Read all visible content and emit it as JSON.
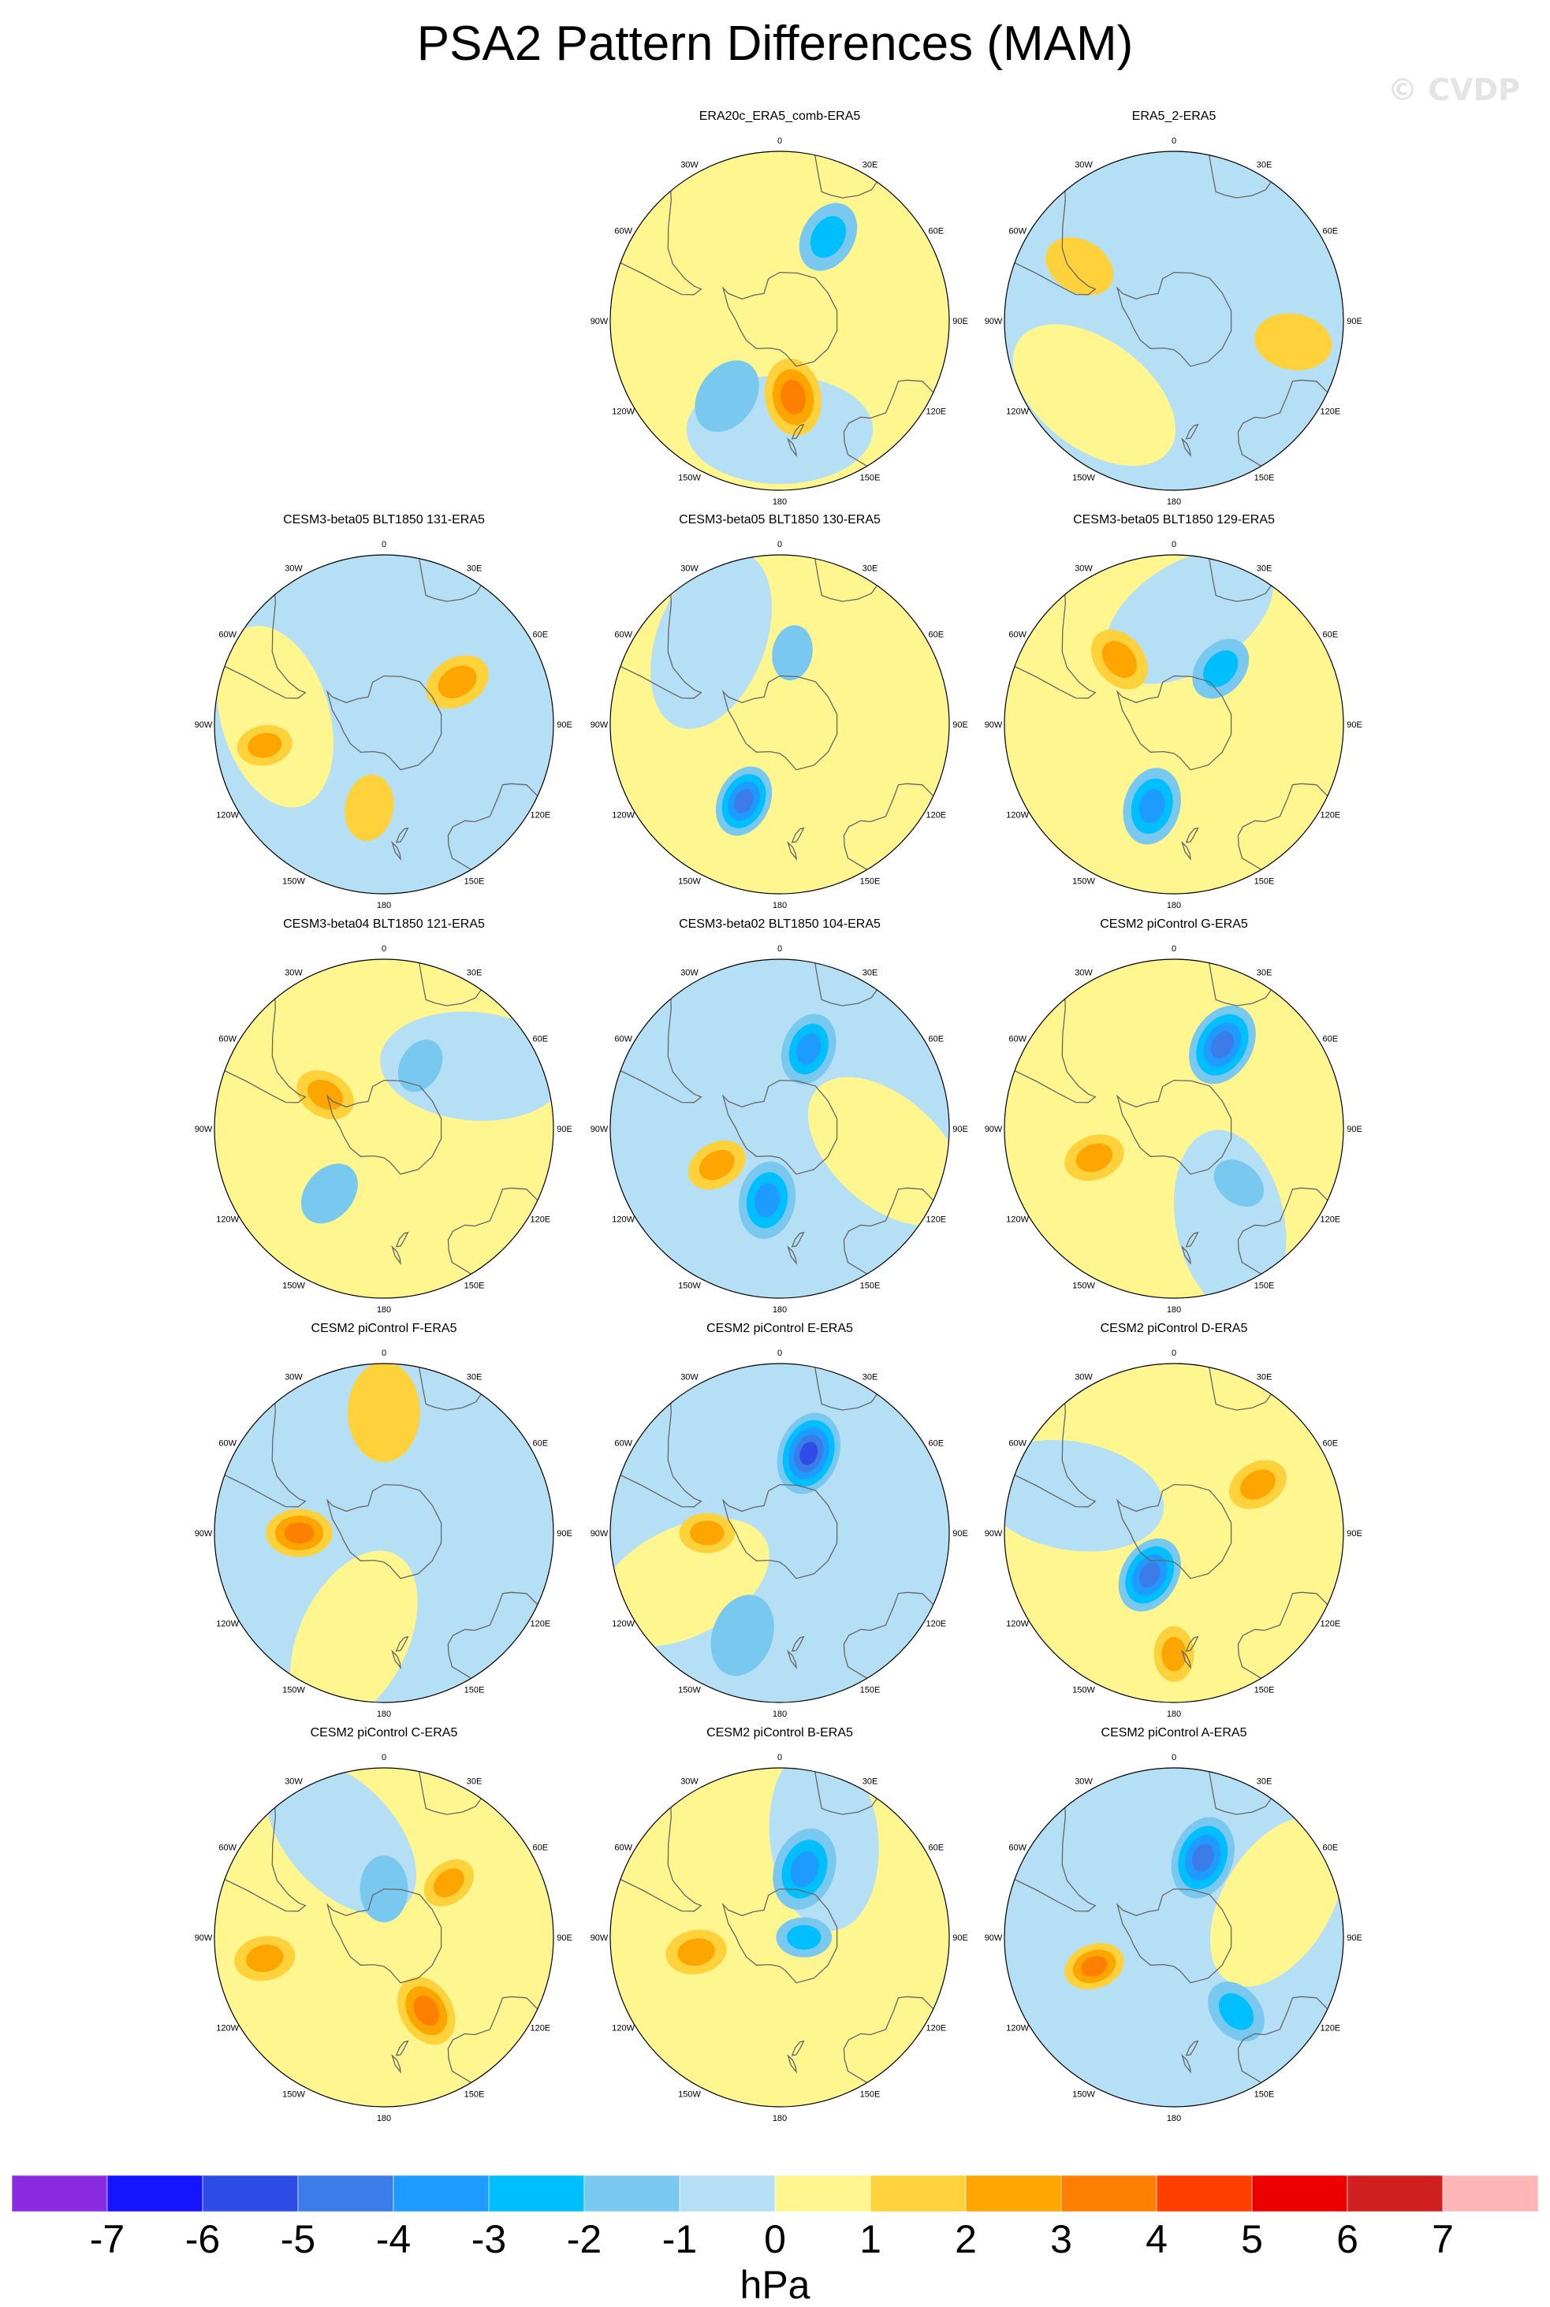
{
  "title": "PSA2 Pattern Differences (MAM)",
  "watermark": "© CVDP",
  "longitude_labels": [
    "0",
    "30E",
    "60E",
    "90E",
    "120E",
    "150E",
    "180",
    "150W",
    "120W",
    "90W",
    "60W",
    "30W"
  ],
  "colors": {
    "-7": "#8a2be2",
    "-6": "#1414ff",
    "-5": "#2e4de6",
    "-4": "#3c7ce8",
    "-3": "#1e9bff",
    "-2": "#00bfff",
    "-1": "#79c8f0",
    "0": "#b4dff5",
    "1": "#fff68f",
    "2": "#ffd23c",
    "3": "#ffa500",
    "4": "#ff7f00",
    "5": "#ff3f00",
    "6": "#ee0000",
    "7": "#d02020",
    "8": "#ffb6b6",
    "land": "#666666",
    "border": "#000000"
  },
  "panels": [
    {
      "title": "ERA20c_ERA5_comb-ERA5",
      "base": "pos",
      "features": [
        {
          "lat": -58,
          "lon": 170,
          "lvl": 3,
          "r": 14
        },
        {
          "lat": -50,
          "lon": 30,
          "lvl": -2,
          "r": 13
        },
        {
          "lat": -52,
          "lon": -145,
          "lvl": -1,
          "r": 14
        }
      ]
    },
    {
      "title": "ERA5_2-ERA5",
      "base": "neg",
      "features": [
        {
          "lat": -45,
          "lon": -60,
          "lvl": 1,
          "r": 13
        },
        {
          "lat": -40,
          "lon": 100,
          "lvl": 1,
          "r": 14
        }
      ]
    },
    {
      "title": "CESM3-beta05 BLT1850 131-ERA5",
      "base": "neg",
      "features": [
        {
          "lat": -55,
          "lon": 60,
          "lvl": 2,
          "r": 12
        },
        {
          "lat": -40,
          "lon": -100,
          "lvl": 2,
          "r": 10
        },
        {
          "lat": -55,
          "lon": -170,
          "lvl": 1,
          "r": 12
        }
      ]
    },
    {
      "title": "CESM3-beta05 BLT1850 130-ERA5",
      "base": "pos",
      "features": [
        {
          "lat": -55,
          "lon": -155,
          "lvl": -4,
          "r": 13
        },
        {
          "lat": -60,
          "lon": 10,
          "lvl": -1,
          "r": 10
        }
      ]
    },
    {
      "title": "CESM3-beta05 BLT1850 129-ERA5",
      "base": "pos",
      "features": [
        {
          "lat": -55,
          "lon": -165,
          "lvl": -3,
          "r": 14
        },
        {
          "lat": -55,
          "lon": -40,
          "lvl": 2,
          "r": 12
        },
        {
          "lat": -60,
          "lon": 40,
          "lvl": -2,
          "r": 12
        }
      ]
    },
    {
      "title": "CESM3-beta04 BLT1850 121-ERA5",
      "base": "pos",
      "features": [
        {
          "lat": -62,
          "lon": -60,
          "lvl": 2,
          "r": 11
        },
        {
          "lat": -55,
          "lon": -140,
          "lvl": -1,
          "r": 12
        },
        {
          "lat": -60,
          "lon": 30,
          "lvl": -1,
          "r": 10
        }
      ]
    },
    {
      "title": "CESM3-beta02 BLT1850 104-ERA5",
      "base": "neg",
      "features": [
        {
          "lat": -55,
          "lon": 20,
          "lvl": -3,
          "r": 13
        },
        {
          "lat": -60,
          "lon": -120,
          "lvl": 2,
          "r": 11
        },
        {
          "lat": -60,
          "lon": -170,
          "lvl": -3,
          "r": 14
        }
      ]
    },
    {
      "title": "CESM2 piControl G-ERA5",
      "base": "pos",
      "features": [
        {
          "lat": -50,
          "lon": 30,
          "lvl": -4,
          "r": 15
        },
        {
          "lat": -55,
          "lon": -110,
          "lvl": 2,
          "r": 11
        },
        {
          "lat": -55,
          "lon": 130,
          "lvl": -1,
          "r": 10
        }
      ]
    },
    {
      "title": "CESM2 piControl F-ERA5",
      "base": "neg",
      "features": [
        {
          "lat": -55,
          "lon": -90,
          "lvl": 3,
          "r": 12
        },
        {
          "lat": -40,
          "lon": 0,
          "lvl": 1,
          "r": 18
        }
      ]
    },
    {
      "title": "CESM2 piControl E-ERA5",
      "base": "neg",
      "features": [
        {
          "lat": -55,
          "lon": 20,
          "lvl": -5,
          "r": 15
        },
        {
          "lat": -60,
          "lon": -90,
          "lvl": 2,
          "r": 10
        },
        {
          "lat": -45,
          "lon": -160,
          "lvl": -1,
          "r": 15
        }
      ]
    },
    {
      "title": "CESM2 piControl D-ERA5",
      "base": "pos",
      "features": [
        {
          "lat": -70,
          "lon": -150,
          "lvl": -4,
          "r": 14
        },
        {
          "lat": -50,
          "lon": 60,
          "lvl": 2,
          "r": 11
        },
        {
          "lat": -40,
          "lon": -180,
          "lvl": 2,
          "r": 10
        }
      ]
    },
    {
      "title": "CESM2 piControl C-ERA5",
      "base": "pos",
      "features": [
        {
          "lat": -55,
          "lon": 150,
          "lvl": 3,
          "r": 13
        },
        {
          "lat": -40,
          "lon": -100,
          "lvl": 2,
          "r": 11
        },
        {
          "lat": -55,
          "lon": 50,
          "lvl": 2,
          "r": 10
        },
        {
          "lat": -70,
          "lon": 0,
          "lvl": -1,
          "r": 12
        }
      ]
    },
    {
      "title": "CESM2 piControl B-ERA5",
      "base": "pos",
      "features": [
        {
          "lat": -60,
          "lon": 20,
          "lvl": -3,
          "r": 15
        },
        {
          "lat": -55,
          "lon": -100,
          "lvl": 2,
          "r": 11
        },
        {
          "lat": -80,
          "lon": 90,
          "lvl": -2,
          "r": 10
        }
      ]
    },
    {
      "title": "CESM2 piControl A-ERA5",
      "base": "neg",
      "features": [
        {
          "lat": -55,
          "lon": 20,
          "lvl": -4,
          "r": 15
        },
        {
          "lat": -55,
          "lon": -110,
          "lvl": 3,
          "r": 11
        },
        {
          "lat": -50,
          "lon": 140,
          "lvl": -2,
          "r": 12
        }
      ]
    }
  ],
  "chart_data": {
    "type": "heatmap",
    "title": "PSA2 Pattern Differences (MAM)",
    "projection": "south polar stereographic",
    "units": "hPa",
    "colorbar": {
      "label": "hPa",
      "tick_labels": [
        "-7",
        "-6",
        "-5",
        "-4",
        "-3",
        "-2",
        "-1",
        "0",
        "1",
        "2",
        "3",
        "4",
        "5",
        "6",
        "7"
      ],
      "levels": [
        -7,
        -6,
        -5,
        -4,
        -3,
        -2,
        -1,
        0,
        1,
        2,
        3,
        4,
        5,
        6,
        7
      ]
    }
  }
}
